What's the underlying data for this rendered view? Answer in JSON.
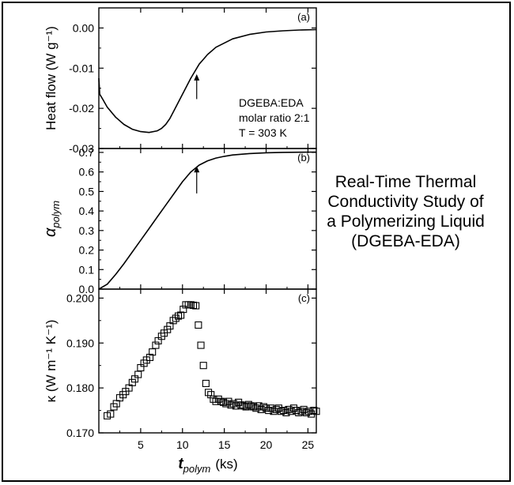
{
  "side_title": {
    "line1": "Real-Time Thermal",
    "line2": "Conductivity Study of",
    "line3": "a Polymerizing Liquid",
    "line4": "(DGEBA-EDA)"
  },
  "chart_data": [
    {
      "panel": "(a)",
      "type": "line",
      "ylabel": "Heat flow (W g⁻¹)",
      "ylim": [
        -0.03,
        0.005
      ],
      "yticks": [
        "0.00",
        "-0.01",
        "-0.02",
        "-0.03"
      ],
      "ytick_values": [
        0.0,
        -0.01,
        -0.02,
        -0.03
      ],
      "xlim": [
        0,
        26
      ],
      "legend_text": [
        "DGEBA:EDA",
        "molar ratio 2:1",
        "T = 303 K"
      ],
      "annotation": "arrow at t ≈ 11.7 ks",
      "arrow": {
        "x": 11.7,
        "y_from": -0.0177,
        "y_to": -0.0115
      },
      "x": [
        0,
        0.1,
        0.4,
        1,
        2,
        3,
        4,
        5,
        6,
        7,
        7.5,
        8,
        8.5,
        9,
        10,
        11,
        12,
        13,
        14,
        16,
        18,
        20,
        22,
        24,
        26
      ],
      "y": [
        -0.0125,
        -0.0165,
        -0.0175,
        -0.0197,
        -0.0222,
        -0.024,
        -0.0252,
        -0.0258,
        -0.026,
        -0.0256,
        -0.025,
        -0.024,
        -0.0225,
        -0.0205,
        -0.0165,
        -0.0125,
        -0.009,
        -0.0066,
        -0.0048,
        -0.0027,
        -0.0016,
        -0.001,
        -0.0007,
        -0.0005,
        -0.0004
      ]
    },
    {
      "panel": "(b)",
      "type": "line",
      "ylabel": "α",
      "ylabel_sub": "polym",
      "ylim": [
        0,
        0.72
      ],
      "yticks": [
        "0.0",
        "0.1",
        "0.2",
        "0.3",
        "0.4",
        "0.5",
        "0.6",
        "0.7"
      ],
      "ytick_values": [
        0,
        0.1,
        0.2,
        0.3,
        0.4,
        0.5,
        0.6,
        0.7
      ],
      "xlim": [
        0,
        26
      ],
      "arrow": {
        "x": 11.7,
        "y_from": 0.49,
        "y_to": 0.63
      },
      "x": [
        0,
        1,
        2,
        3,
        4,
        5,
        6,
        7,
        8,
        9,
        10,
        11,
        12,
        13,
        14,
        15,
        16,
        18,
        20,
        22,
        24,
        26
      ],
      "y": [
        0,
        0.025,
        0.075,
        0.13,
        0.19,
        0.25,
        0.31,
        0.37,
        0.43,
        0.49,
        0.55,
        0.6,
        0.635,
        0.657,
        0.671,
        0.68,
        0.687,
        0.694,
        0.698,
        0.7,
        0.701,
        0.702
      ]
    },
    {
      "panel": "(c)",
      "type": "scatter",
      "marker": "open-square",
      "ylabel": "κ (W m⁻¹ K⁻¹)",
      "xlabel": "t",
      "xlabel_sub": "polym",
      "xlabel_unit": "(ks)",
      "ylim": [
        0.17,
        0.202
      ],
      "yticks": [
        "0.200",
        "0.190",
        "0.180",
        "0.170"
      ],
      "ytick_values": [
        0.2,
        0.19,
        0.18,
        0.17
      ],
      "xlim": [
        0,
        26
      ],
      "xticks": [
        "5",
        "10",
        "15",
        "20",
        "25"
      ],
      "xtick_values": [
        5,
        10,
        15,
        20,
        25
      ],
      "x": [
        1.0,
        1.4,
        1.8,
        2.1,
        2.5,
        2.9,
        3.2,
        3.6,
        4.0,
        4.3,
        4.7,
        5.0,
        5.4,
        5.7,
        6.1,
        6.4,
        6.8,
        7.1,
        7.5,
        7.8,
        8.2,
        8.5,
        8.9,
        9.2,
        9.5,
        9.8,
        10.1,
        10.4,
        10.7,
        11.0,
        11.3,
        11.6,
        11.9,
        12.2,
        12.5,
        12.8,
        13.1,
        13.4,
        13.7,
        14.0,
        14.3,
        14.6,
        14.9,
        15.2,
        15.5,
        15.8,
        16.1,
        16.4,
        16.7,
        17.0,
        17.3,
        17.6,
        17.9,
        18.2,
        18.5,
        18.8,
        19.1,
        19.4,
        19.7,
        20.0,
        20.3,
        20.6,
        20.9,
        21.2,
        21.5,
        21.8,
        22.1,
        22.4,
        22.7,
        23.0,
        23.3,
        23.6,
        23.9,
        24.2,
        24.5,
        24.8,
        25.1,
        25.4,
        25.7,
        26.0
      ],
      "y": [
        0.1738,
        0.1742,
        0.1758,
        0.1765,
        0.1778,
        0.1785,
        0.1792,
        0.18,
        0.1812,
        0.182,
        0.183,
        0.1845,
        0.1855,
        0.1862,
        0.1868,
        0.188,
        0.1895,
        0.1905,
        0.1915,
        0.1922,
        0.193,
        0.1938,
        0.195,
        0.1955,
        0.196,
        0.1962,
        0.1975,
        0.1985,
        0.1985,
        0.1985,
        0.1984,
        0.1983,
        0.194,
        0.1895,
        0.185,
        0.181,
        0.179,
        0.1785,
        0.1775,
        0.177,
        0.1775,
        0.177,
        0.1768,
        0.1765,
        0.177,
        0.1762,
        0.1765,
        0.176,
        0.1768,
        0.1762,
        0.176,
        0.1758,
        0.1763,
        0.176,
        0.1758,
        0.1755,
        0.176,
        0.1752,
        0.1758,
        0.1755,
        0.175,
        0.1755,
        0.1748,
        0.1752,
        0.1755,
        0.1748,
        0.175,
        0.1745,
        0.1752,
        0.1748,
        0.1755,
        0.175,
        0.1745,
        0.1748,
        0.1752,
        0.1745,
        0.1748,
        0.1742,
        0.175,
        0.1748
      ]
    }
  ]
}
